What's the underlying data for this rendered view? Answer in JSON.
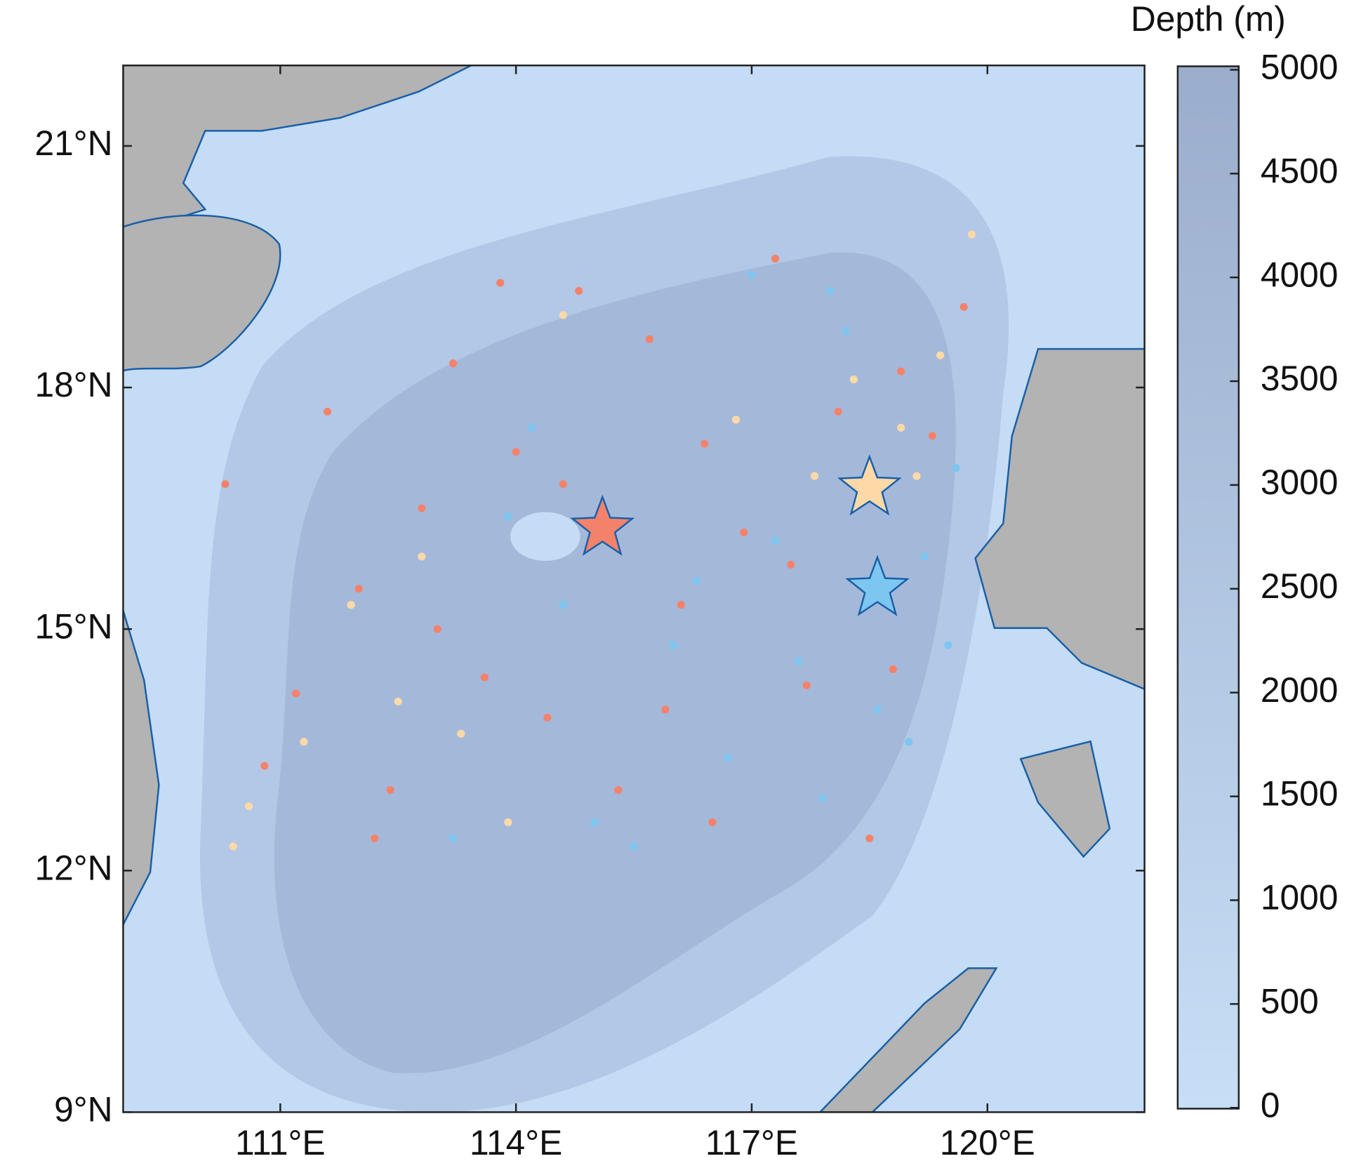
{
  "chart_data": {
    "type": "scatter",
    "xlim": [
      109,
      122
    ],
    "ylim": [
      9,
      22
    ],
    "xticks": [
      {
        "value": 111,
        "label": "111°E"
      },
      {
        "value": 114,
        "label": "114°E"
      },
      {
        "value": 117,
        "label": "117°E"
      },
      {
        "value": 120,
        "label": "120°E"
      }
    ],
    "yticks": [
      {
        "value": 9,
        "label": "9°N"
      },
      {
        "value": 12,
        "label": "12°N"
      },
      {
        "value": 15,
        "label": "15°N"
      },
      {
        "value": 18,
        "label": "18°N"
      },
      {
        "value": 21,
        "label": "21°N"
      }
    ],
    "series": [
      {
        "color": "#f4826b",
        "x": [
          110.3,
          110.8,
          111.2,
          111.6,
          112.0,
          112.4,
          112.8,
          113.2,
          113.6,
          114.0,
          114.4,
          114.8,
          115.3,
          115.7,
          116.1,
          116.5,
          116.9,
          117.3,
          117.7,
          118.1,
          118.5,
          118.9,
          119.3,
          119.7,
          112.2,
          113.0,
          114.6,
          115.9,
          117.5,
          118.8,
          113.8,
          116.4
        ],
        "values": [
          16.8,
          13.3,
          14.2,
          17.7,
          15.5,
          13.0,
          16.5,
          18.3,
          14.4,
          17.2,
          13.9,
          19.2,
          13.0,
          18.6,
          15.3,
          12.6,
          16.2,
          19.6,
          14.3,
          17.7,
          12.4,
          18.2,
          17.4,
          19.0,
          12.4,
          15.0,
          16.8,
          14.0,
          15.8,
          14.5,
          19.3,
          17.3
        ]
      },
      {
        "color": "#fdd9a8",
        "x": [
          110.6,
          111.3,
          111.9,
          112.5,
          113.3,
          113.9,
          114.6,
          116.8,
          117.8,
          118.3,
          118.9,
          119.4,
          119.8,
          112.8,
          110.4,
          119.1
        ],
        "values": [
          12.8,
          13.6,
          15.3,
          14.1,
          13.7,
          12.6,
          18.9,
          17.6,
          16.9,
          18.1,
          17.5,
          18.4,
          19.9,
          15.9,
          12.3,
          16.9
        ]
      },
      {
        "color": "#7dc6f0",
        "x": [
          113.9,
          114.6,
          115.5,
          116.0,
          116.7,
          117.3,
          117.9,
          118.6,
          119.2,
          119.6,
          115.0,
          116.3,
          117.0,
          118.0,
          119.0,
          113.2,
          117.6,
          118.2,
          114.2,
          119.5
        ],
        "values": [
          16.4,
          15.3,
          12.3,
          14.8,
          13.4,
          16.1,
          12.9,
          14.0,
          15.9,
          17.0,
          12.6,
          15.6,
          19.4,
          19.2,
          13.6,
          12.4,
          14.6,
          18.7,
          17.5,
          14.8
        ]
      }
    ],
    "stars": {
      "x": [
        115.1,
        118.5,
        118.6
      ],
      "values": [
        16.25,
        16.75,
        15.5
      ],
      "colors": [
        "#f4826b",
        "#fdd9a8",
        "#7dc6f0"
      ]
    },
    "colorbar": {
      "label": "Depth (m)",
      "lim": [
        0,
        5000
      ],
      "ticks": [
        0,
        500,
        1000,
        1500,
        2000,
        2500,
        3000,
        3500,
        4000,
        4500,
        5000
      ]
    }
  }
}
